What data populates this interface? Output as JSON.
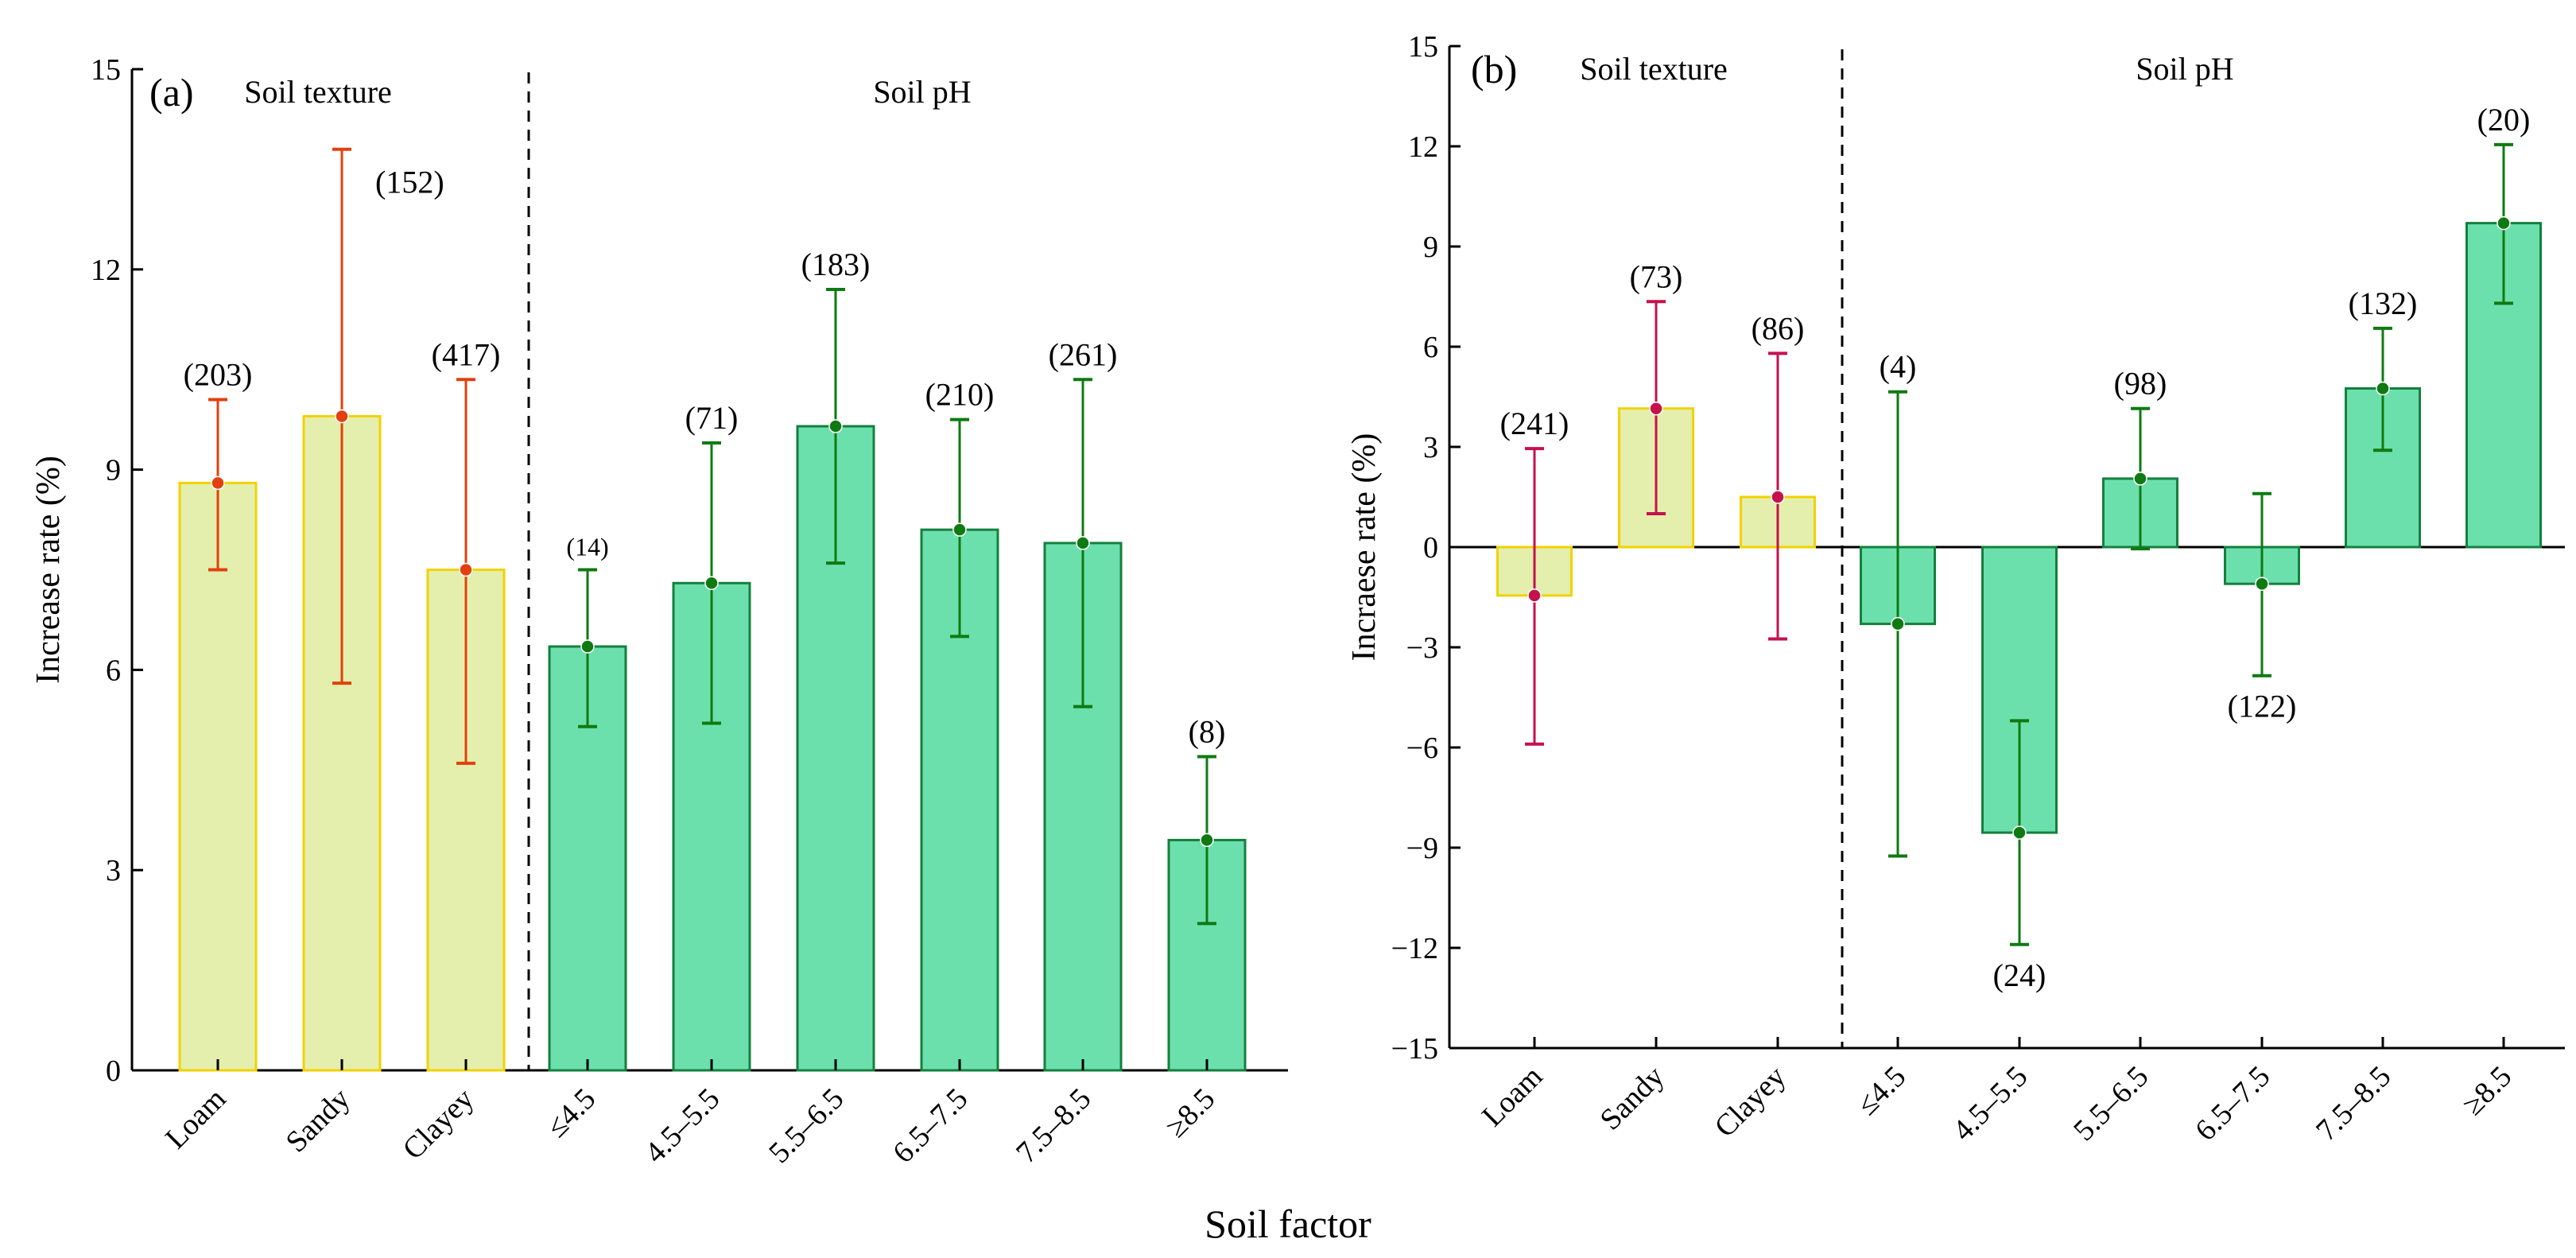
{
  "xlabel": "Soil factor",
  "colors": {
    "texture_fill": "#e4efad",
    "texture_stroke": "#f2d200",
    "ph_fill": "#6ce0ac",
    "ph_stroke": "#14803e",
    "error_a_texture": "#e2400f",
    "error_b_texture": "#c4124c",
    "error_ph": "#0f7a12"
  },
  "chart_data": [
    {
      "type": "bar",
      "panel_label": "(a)",
      "ylabel": "Increase rate (%)",
      "ylim": [
        0,
        15
      ],
      "yticks": [
        0,
        3,
        6,
        9,
        12,
        15
      ],
      "group_labels": [
        "Soil texture",
        "Soil pH"
      ],
      "categories": [
        "Loam",
        "Sandy",
        "Clayey",
        "≤4.5",
        "4.5–5.5",
        "5.5–6.5",
        "6.5–7.5",
        "7.5–8.5",
        "≥8.5"
      ],
      "groups": [
        "texture",
        "texture",
        "texture",
        "ph",
        "ph",
        "ph",
        "ph",
        "ph",
        "ph"
      ],
      "values": [
        8.8,
        9.8,
        7.5,
        6.35,
        7.3,
        9.65,
        8.1,
        7.9,
        3.45
      ],
      "ci_low": [
        7.5,
        5.8,
        4.6,
        5.15,
        5.2,
        7.6,
        6.5,
        5.45,
        2.2
      ],
      "ci_high": [
        10.05,
        13.8,
        10.35,
        7.5,
        9.4,
        11.7,
        9.75,
        10.35,
        4.7
      ],
      "n_labels": [
        "(203)",
        "(152)",
        "(417)",
        "(14)",
        "(71)",
        "(183)",
        "(210)",
        "(261)",
        "(8)"
      ]
    },
    {
      "type": "bar",
      "panel_label": "(b)",
      "ylabel": "Incraese rate (%)",
      "ylim": [
        -15,
        15
      ],
      "yticks": [
        -15,
        -12,
        -9,
        -6,
        -3,
        0,
        3,
        6,
        9,
        12,
        15
      ],
      "group_labels": [
        "Soil texture",
        "Soil pH"
      ],
      "categories": [
        "Loam",
        "Sandy",
        "Clayey",
        "≤4.5",
        "4.5–5.5",
        "5.5–6.5",
        "6.5–7.5",
        "7.5–8.5",
        "≥8.5"
      ],
      "groups": [
        "texture",
        "texture",
        "texture",
        "ph",
        "ph",
        "ph",
        "ph",
        "ph",
        "ph"
      ],
      "values": [
        -1.45,
        4.15,
        1.5,
        -2.3,
        -8.55,
        2.05,
        -1.1,
        4.75,
        9.7
      ],
      "ci_low": [
        -5.9,
        1.0,
        -2.75,
        -9.25,
        -11.9,
        -0.05,
        -3.85,
        2.9,
        7.3
      ],
      "ci_high": [
        2.95,
        7.35,
        5.8,
        4.65,
        -5.2,
        4.15,
        1.6,
        6.55,
        12.05
      ],
      "n_labels": [
        "(241)",
        "(73)",
        "(86)",
        "(4)",
        "(24)",
        "(98)",
        "(122)",
        "(132)",
        "(20)"
      ],
      "n_label_below": [
        false,
        false,
        false,
        false,
        true,
        false,
        true,
        false,
        false
      ]
    }
  ]
}
